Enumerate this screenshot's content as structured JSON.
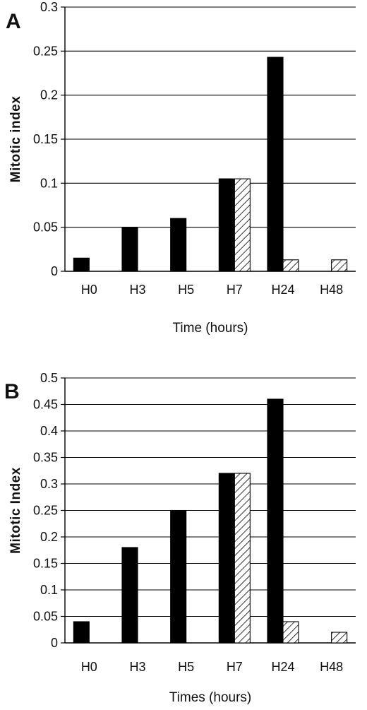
{
  "chart_data": [
    {
      "type": "bar",
      "panel": "A",
      "categories": [
        "H0",
        "H3",
        "H5",
        "H7",
        "H24",
        "H48"
      ],
      "series": [
        {
          "fill": "#000000",
          "values": [
            0.015,
            0.05,
            0.06,
            0.105,
            0.243,
            0
          ]
        },
        {
          "fill": "hatched",
          "values": [
            0,
            0,
            0,
            0.105,
            0.013,
            0.013
          ]
        }
      ],
      "xlabel": "Time (hours)",
      "ylabel": "Mitotic index",
      "ylim": [
        0,
        0.3
      ],
      "yticks": [
        0,
        0.05,
        0.1,
        0.15,
        0.2,
        0.25,
        0.3
      ],
      "ytick_labels": [
        "0",
        "0.05",
        "0.1",
        "0.15",
        "0.2",
        "0.25",
        "0.3"
      ],
      "grid": "horizontal"
    },
    {
      "type": "bar",
      "panel": "B",
      "categories": [
        "H0",
        "H3",
        "H5",
        "H7",
        "H24",
        "H48"
      ],
      "series": [
        {
          "fill": "#000000",
          "values": [
            0.04,
            0.18,
            0.25,
            0.32,
            0.46,
            0
          ]
        },
        {
          "fill": "hatched",
          "values": [
            0,
            0,
            0,
            0.32,
            0.04,
            0.02
          ]
        }
      ],
      "xlabel": "Times (hours)",
      "ylabel": "Mitotic Index",
      "ylim": [
        0,
        0.5
      ],
      "yticks": [
        0,
        0.05,
        0.1,
        0.15,
        0.2,
        0.25,
        0.3,
        0.35,
        0.4,
        0.45,
        0.5
      ],
      "ytick_labels": [
        "0",
        "0.05",
        "0.1",
        "0.15",
        "0.2",
        "0.25",
        "0.3",
        "0.35",
        "0.4",
        "0.45",
        "0.5"
      ],
      "grid": "horizontal"
    }
  ]
}
